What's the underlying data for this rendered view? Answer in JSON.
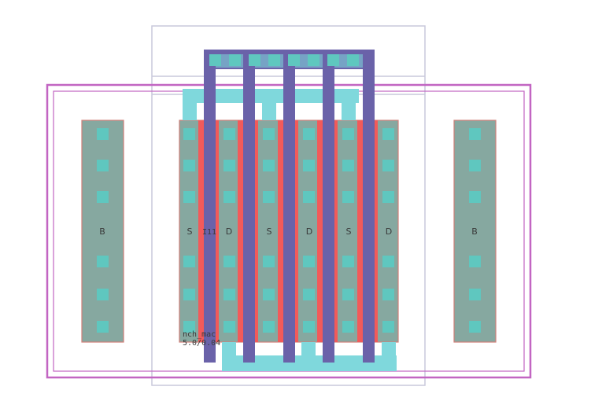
{
  "layout_view": {
    "colors": {
      "canvas": "#ffffff",
      "boundary": "#c9c9dc",
      "nwell": "#c265c2",
      "active": "#d07f78",
      "active_fill": "#5bb9ad",
      "poly": "#f25a5a",
      "metal1": "#7fd8dc",
      "metal2": "#6a62a9",
      "via": "#5fc7bf",
      "diff_strip": "#86a8a0"
    },
    "body_left": {
      "label": "B"
    },
    "body_right": {
      "label": "B"
    },
    "finger_labels": [
      "S",
      "D",
      "S",
      "D",
      "S",
      "D"
    ],
    "instance_label": "I11",
    "cell_name": "nch_mac",
    "cell_size": "5.0/0.04"
  }
}
